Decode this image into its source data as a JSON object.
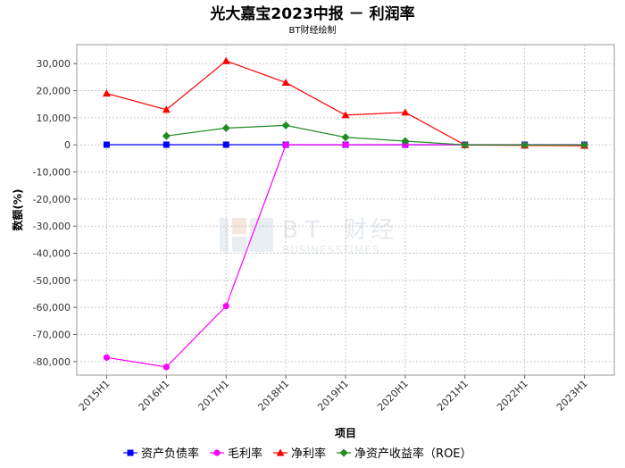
{
  "chart_data": {
    "type": "line",
    "title": "光大嘉宝2023中报 － 利润率",
    "subtitle": "BT财经绘制",
    "xlabel": "项目",
    "ylabel": "数额(%)",
    "categories": [
      "2015H1",
      "2016H1",
      "2017H1",
      "2018H1",
      "2019H1",
      "2020H1",
      "2021H1",
      "2022H1",
      "2023H1"
    ],
    "ylim": [
      -85000,
      37000
    ],
    "yticks": [
      30000,
      20000,
      10000,
      0,
      -10000,
      -20000,
      -30000,
      -40000,
      -50000,
      -60000,
      -70000,
      -80000
    ],
    "ytick_labels": [
      "30,000",
      "20,000",
      "10,000",
      "0",
      "-10,000",
      "-20,000",
      "-30,000",
      "-40,000",
      "-50,000",
      "-60,000",
      "-70,000",
      "-80,000"
    ],
    "grid": true,
    "legend_position": "bottom",
    "series": [
      {
        "name": "资产负债率",
        "color": "#0000ff",
        "marker": "square",
        "values": [
          70,
          70,
          72,
          68,
          65,
          66,
          66,
          63,
          62
        ]
      },
      {
        "name": "毛利率",
        "color": "#ff00ff",
        "marker": "circle",
        "values": [
          -78500,
          -82000,
          -59500,
          30,
          28,
          25,
          30,
          15,
          12
        ]
      },
      {
        "name": "净利率",
        "color": "#ff0000",
        "marker": "triangle",
        "values": [
          19000,
          13000,
          31000,
          23000,
          11000,
          12000,
          -50,
          -200,
          -300
        ]
      },
      {
        "name": "净资产收益率（ROE）",
        "color": "#228b22",
        "marker": "diamond",
        "values": [
          null,
          3300,
          6200,
          7200,
          2800,
          1400,
          -10,
          -20,
          -30
        ]
      }
    ],
    "watermark": {
      "mark": "BT",
      "cn": "财经",
      "en": "BUSINESSTIMES"
    }
  }
}
